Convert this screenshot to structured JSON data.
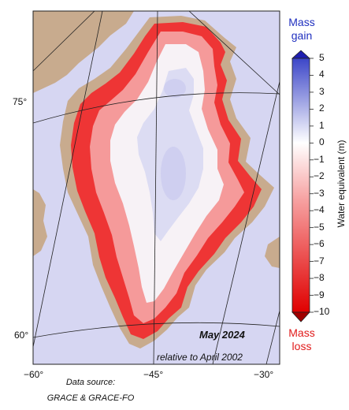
{
  "map": {
    "date": "May 2024",
    "reference": "relative to April 2002",
    "source_line1": "Data source:",
    "source_line2": "GRACE & GRACE-FO",
    "lat_labels": [
      "75°",
      "60°"
    ],
    "lon_labels": [
      "−60°",
      "−45°",
      "−30°"
    ],
    "colors": {
      "ocean": "#d6d6f2",
      "land": "#c8ab8e",
      "gain": "#3c46c8",
      "loss": "#e00000",
      "neutral": "#ffffff"
    }
  },
  "colorbar": {
    "title": "Water equivalent (m)",
    "gain_label_line1": "Mass",
    "gain_label_line2": "gain",
    "loss_label_line1": "Mass",
    "loss_label_line2": "loss",
    "min": -10,
    "max": 5,
    "ticks": [
      "5",
      "4",
      "3",
      "2",
      "1",
      "0",
      "−1",
      "−2",
      "−3",
      "−4",
      "−5",
      "−6",
      "−7",
      "−8",
      "−9",
      "−10"
    ]
  }
}
